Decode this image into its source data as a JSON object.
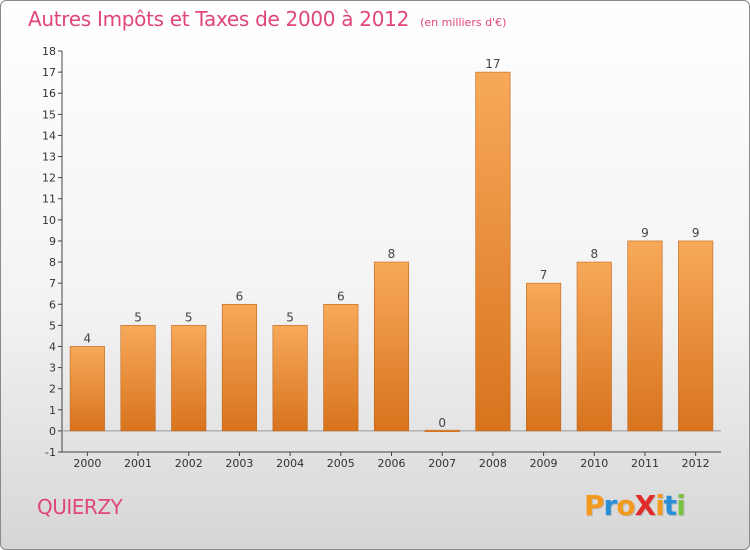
{
  "header": {
    "title": "Autres Impôts et Taxes de 2000 à 2012",
    "subtitle": "(en milliers d'€)"
  },
  "footer": {
    "commune": "QUIERZY",
    "logo": {
      "text": "ProXiti",
      "letters": [
        {
          "char": "P",
          "color": "#f39a1e"
        },
        {
          "char": "r",
          "color": "#2a8fd6"
        },
        {
          "char": "o",
          "color": "#f39a1e"
        },
        {
          "char": "X",
          "color": "#e02b2b"
        },
        {
          "char": "i",
          "color": "#f39a1e"
        },
        {
          "char": "t",
          "color": "#2a8fd6"
        },
        {
          "char": "i",
          "color": "#7cc242"
        }
      ]
    }
  },
  "colors": {
    "accent": "#e0457b",
    "bar_top": "#f7a95a",
    "bar_bottom": "#d8731d",
    "bar_stroke": "#c0651a"
  },
  "chart_data": {
    "type": "bar",
    "title": "Autres Impôts et Taxes de 2000 à 2012",
    "subtitle": "(en milliers d'€)",
    "xlabel": "",
    "ylabel": "",
    "categories": [
      "2000",
      "2001",
      "2002",
      "2003",
      "2004",
      "2005",
      "2006",
      "2007",
      "2008",
      "2009",
      "2010",
      "2011",
      "2012"
    ],
    "values": [
      4,
      5,
      5,
      6,
      5,
      6,
      8,
      0,
      17,
      7,
      8,
      9,
      9
    ],
    "data_labels": [
      "4",
      "5",
      "5",
      "6",
      "5",
      "6",
      "8",
      "0",
      "17",
      "7",
      "8",
      "9",
      "9"
    ],
    "ylim": [
      -1,
      18
    ],
    "yticks": [
      -1,
      0,
      1,
      2,
      3,
      4,
      5,
      6,
      7,
      8,
      9,
      10,
      11,
      12,
      13,
      14,
      15,
      16,
      17,
      18
    ],
    "grid": false,
    "legend": "none"
  }
}
